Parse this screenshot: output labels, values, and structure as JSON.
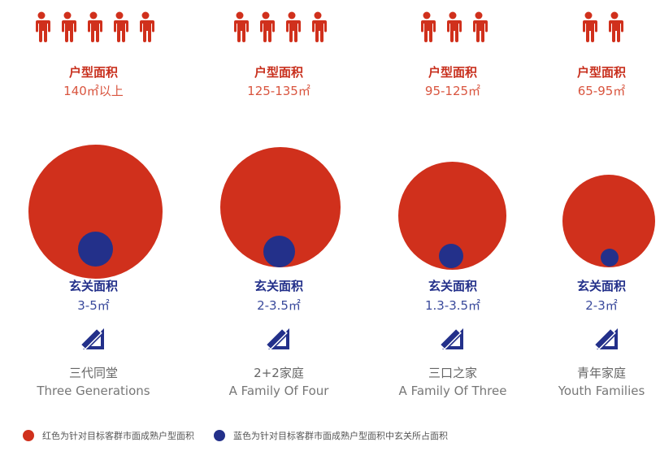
{
  "colors": {
    "red": "#d0301c",
    "blue": "#23308a"
  },
  "icons": {
    "person": "person-icon",
    "ruler": "ruler-triangle-icon"
  },
  "columns": [
    {
      "people": 5,
      "area_label": "户型面积",
      "area_value": "140㎡以上",
      "foyer_label": "玄关面积",
      "foyer_value": "3-5㎡",
      "family_zh": "三代同堂",
      "family_en": "Three Generations"
    },
    {
      "people": 4,
      "area_label": "户型面积",
      "area_value": "125-135㎡",
      "foyer_label": "玄关面积",
      "foyer_value": "2-3.5㎡",
      "family_zh": "2+2家庭",
      "family_en": "A Family Of Four"
    },
    {
      "people": 3,
      "area_label": "户型面积",
      "area_value": "95-125㎡",
      "foyer_label": "玄关面积",
      "foyer_value": "1.3-3.5㎡",
      "family_zh": "三口之家",
      "family_en": "A Family Of Three"
    },
    {
      "people": 2,
      "area_label": "户型面积",
      "area_value": "65-95㎡",
      "foyer_label": "玄关面积",
      "foyer_value": "2-3㎡",
      "family_zh": "青年家庭",
      "family_en": "Youth Families"
    }
  ],
  "legend": {
    "red_text": "红色为针对目标客群市面成熟户型面积",
    "blue_text": "蓝色为针对目标客群市面成熟户型面积中玄关所占面积"
  }
}
